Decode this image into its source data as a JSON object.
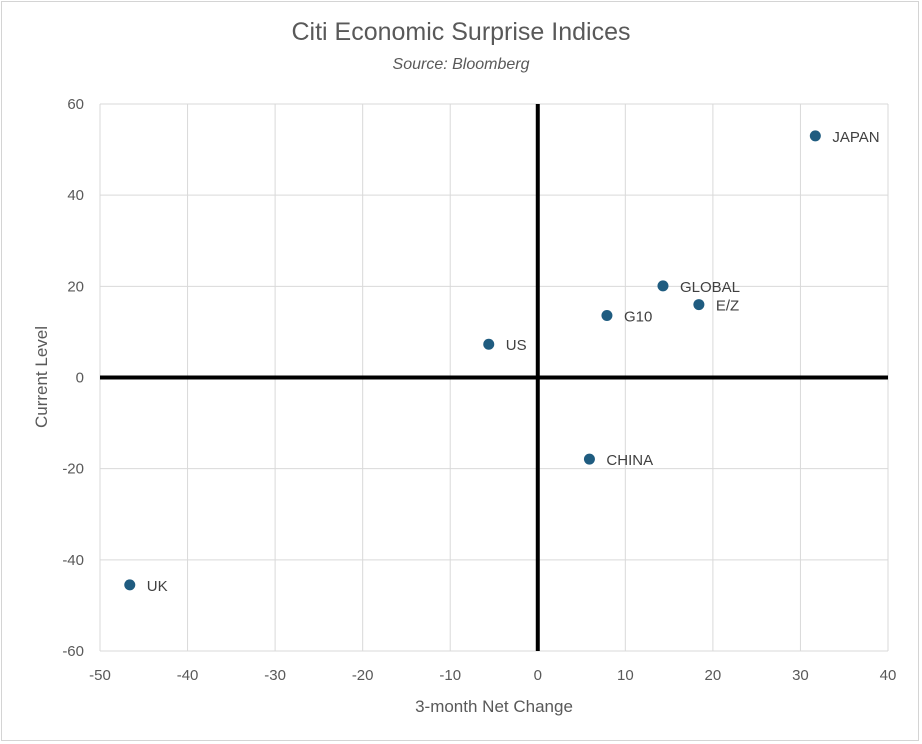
{
  "chart_data": {
    "type": "scatter",
    "title": "Citi Economic Surprise Indices",
    "subtitle": "Source: Bloomberg",
    "xlabel": "3-month Net Change",
    "ylabel": "Current Level",
    "xlim": [
      -50,
      40
    ],
    "ylim": [
      -60,
      60
    ],
    "xticks": [
      -50,
      -40,
      -30,
      -20,
      -10,
      0,
      10,
      20,
      30,
      40
    ],
    "yticks": [
      -60,
      -40,
      -20,
      0,
      20,
      40,
      60
    ],
    "grid": true,
    "point_color": "#1f5c80",
    "points": [
      {
        "label": "JAPAN",
        "x": 31.7,
        "y": 53.0
      },
      {
        "label": "GLOBAL",
        "x": 14.3,
        "y": 20.1
      },
      {
        "label": "E/Z",
        "x": 18.4,
        "y": 16.0
      },
      {
        "label": "G10",
        "x": 7.9,
        "y": 13.6
      },
      {
        "label": "US",
        "x": -5.6,
        "y": 7.3
      },
      {
        "label": "CHINA",
        "x": 5.9,
        "y": -17.9
      },
      {
        "label": "UK",
        "x": -46.6,
        "y": -45.5
      }
    ]
  }
}
